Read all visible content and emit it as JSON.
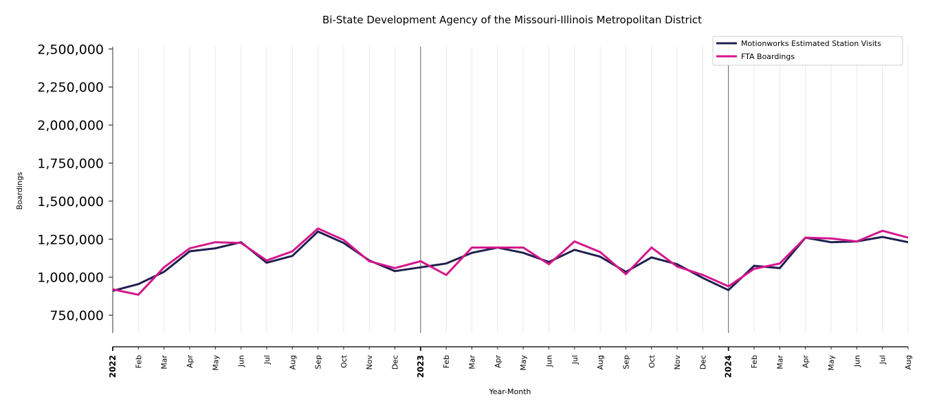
{
  "chart_data": {
    "type": "line",
    "title": "Bi-State Development Agency of the Missouri-Illinois Metropolitan District",
    "xlabel": "Year-Month",
    "ylabel": "Boardings",
    "ylim": [
      633000,
      2515000
    ],
    "yticks": [
      750000,
      1000000,
      1250000,
      1500000,
      1750000,
      2000000,
      2250000,
      2500000
    ],
    "ytick_labels": [
      "750,000",
      "1,000,000",
      "1,250,000",
      "1,500,000",
      "1,750,000",
      "2,000,000",
      "2,250,000",
      "2,500,000"
    ],
    "x": [
      "2022-01",
      "2022-02",
      "2022-03",
      "2022-04",
      "2022-05",
      "2022-06",
      "2022-07",
      "2022-08",
      "2022-09",
      "2022-10",
      "2022-11",
      "2022-12",
      "2023-01",
      "2023-02",
      "2023-03",
      "2023-04",
      "2023-05",
      "2023-06",
      "2023-07",
      "2023-08",
      "2023-09",
      "2023-10",
      "2023-11",
      "2023-12",
      "2024-01",
      "2024-02",
      "2024-03",
      "2024-04",
      "2024-05",
      "2024-06",
      "2024-07",
      "2024-08"
    ],
    "xtick_labels": [
      "2022",
      "Feb",
      "Mar",
      "Apr",
      "May",
      "Jun",
      "Jul",
      "Aug",
      "Sep",
      "Oct",
      "Nov",
      "Dec",
      "2023",
      "Feb",
      "Mar",
      "Apr",
      "May",
      "Jun",
      "Jul",
      "Aug",
      "Sep",
      "Oct",
      "Nov",
      "Dec",
      "2024",
      "Feb",
      "Mar",
      "Apr",
      "May",
      "Jun",
      "Jul",
      "Aug"
    ],
    "year_markers": [
      "2023",
      "2024"
    ],
    "grid": "vertical",
    "legend_position": "top-right",
    "series": [
      {
        "name": "Motionworks Estimated Station Visits",
        "color": "#1f1f4f",
        "values": [
          910000,
          955000,
          1035000,
          1170000,
          1190000,
          1230000,
          1095000,
          1140000,
          1300000,
          1225000,
          1110000,
          1040000,
          1065000,
          1090000,
          1160000,
          1195000,
          1160000,
          1100000,
          1180000,
          1135000,
          1035000,
          1130000,
          1085000,
          995000,
          915000,
          1075000,
          1060000,
          1260000,
          1230000,
          1235000,
          1265000,
          1230000
        ]
      },
      {
        "name": "FTA Boardings",
        "color": "#d4168c",
        "values": [
          920000,
          885000,
          1065000,
          1190000,
          1230000,
          1225000,
          1110000,
          1170000,
          1320000,
          1245000,
          1105000,
          1060000,
          1105000,
          1015000,
          1195000,
          1195000,
          1195000,
          1085000,
          1235000,
          1165000,
          1020000,
          1195000,
          1070000,
          1015000,
          940000,
          1055000,
          1090000,
          1260000,
          1255000,
          1235000,
          1305000,
          1260000
        ]
      }
    ]
  }
}
